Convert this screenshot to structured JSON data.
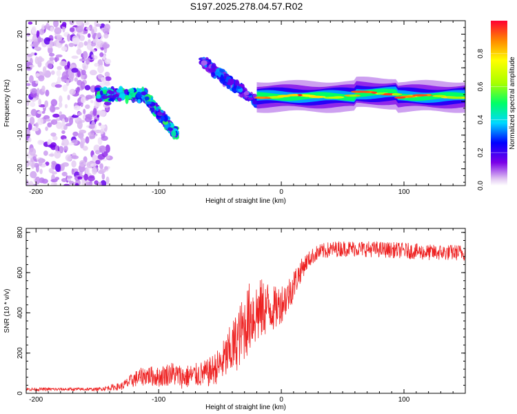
{
  "title": "S197.2025.278.04.57.R02",
  "chart_data": [
    {
      "type": "heatmap",
      "name": "spectrogram",
      "xlabel": "Height of straight line (km)",
      "ylabel": "Frequency (Hz)",
      "xlim": [
        -208,
        150
      ],
      "ylim": [
        -25,
        24
      ],
      "xticks": [
        -200,
        -100,
        0,
        100
      ],
      "yticks": [
        -20,
        -10,
        0,
        10,
        20
      ],
      "colorbar": {
        "label": "Normalized spectral amplitude",
        "range": [
          0,
          1
        ],
        "ticks": [
          0.0,
          0.2,
          0.4,
          0.6,
          0.8
        ],
        "tick_labels": [
          "0.0",
          "0.2",
          "0.4",
          "0.6",
          "0.8"
        ]
      },
      "features": [
        {
          "desc": "scattered noise",
          "x_range": [
            -208,
            -140
          ],
          "f_range": [
            -25,
            24
          ],
          "amplitude": 0.1
        },
        {
          "desc": "signal band",
          "x_range": [
            -150,
            -110
          ],
          "f_center": 2,
          "amplitude": 0.3
        },
        {
          "desc": "signal band",
          "x_range": [
            -110,
            -85
          ],
          "f_from": 1,
          "f_to": -10,
          "amplitude": 0.3
        },
        {
          "desc": "signal band",
          "x_range": [
            -65,
            -20
          ],
          "f_from": 12,
          "f_to": 0,
          "amplitude": 0.2
        },
        {
          "desc": "steady carrier",
          "x_range": [
            -20,
            150
          ],
          "f_center": 1.5,
          "amplitude": 0.9
        }
      ]
    },
    {
      "type": "line",
      "name": "snr",
      "xlabel": "Height of straight line (km)",
      "ylabel": "SNR (10 * v/v)",
      "xlim": [
        -208,
        150
      ],
      "ylim": [
        0,
        820
      ],
      "xticks": [
        -200,
        -100,
        0,
        100
      ],
      "yticks": [
        0,
        200,
        400,
        600,
        800
      ],
      "color": "#ee2222",
      "x": [
        -208,
        -180,
        -150,
        -130,
        -120,
        -110,
        -100,
        -90,
        -80,
        -70,
        -60,
        -50,
        -40,
        -30,
        -25,
        -20,
        -15,
        -10,
        -5,
        0,
        5,
        10,
        15,
        20,
        25,
        30,
        40,
        50,
        60,
        80,
        100,
        120,
        150
      ],
      "values": [
        20,
        20,
        20,
        35,
        70,
        90,
        80,
        100,
        80,
        90,
        100,
        140,
        220,
        330,
        390,
        400,
        420,
        430,
        420,
        450,
        480,
        540,
        600,
        650,
        680,
        700,
        715,
        720,
        720,
        715,
        710,
        700,
        700
      ],
      "noise_amplitude": [
        8,
        8,
        8,
        20,
        40,
        50,
        50,
        60,
        60,
        60,
        70,
        90,
        140,
        170,
        180,
        170,
        150,
        130,
        110,
        100,
        90,
        80,
        60,
        45,
        40,
        40,
        40,
        40,
        40,
        40,
        40,
        40,
        40
      ]
    }
  ]
}
